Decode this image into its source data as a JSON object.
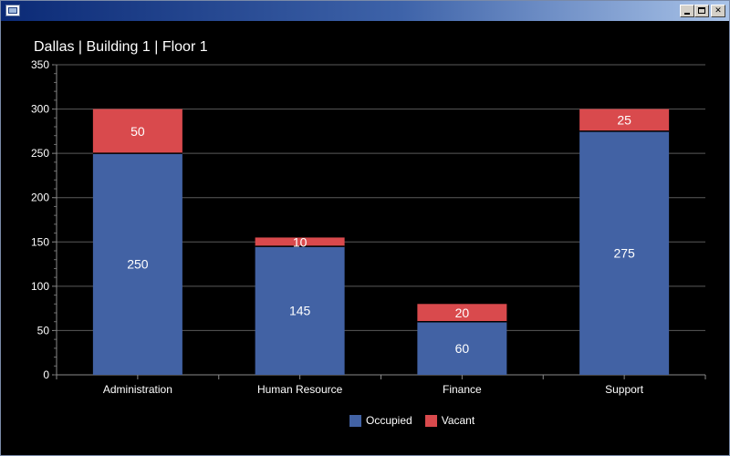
{
  "window": {
    "title": "",
    "controls": {
      "minimize": "minimize",
      "maximize": "maximize",
      "close": "close"
    }
  },
  "chart_data": {
    "type": "bar",
    "stacked": true,
    "title": "Dallas | Building 1 | Floor 1",
    "xlabel": "",
    "ylabel": "",
    "categories": [
      "Administration",
      "Human Resource",
      "Finance",
      "Support"
    ],
    "series": [
      {
        "name": "Occupied",
        "values": [
          250,
          145,
          60,
          275
        ],
        "color": "#4262a4"
      },
      {
        "name": "Vacant",
        "values": [
          50,
          10,
          20,
          25
        ],
        "color": "#d94a4d"
      }
    ],
    "ylim": [
      0,
      350
    ],
    "yticks": [
      0,
      50,
      100,
      150,
      200,
      250,
      300,
      350
    ],
    "grid": true,
    "legend": "bottom-center",
    "data_labels": true
  }
}
